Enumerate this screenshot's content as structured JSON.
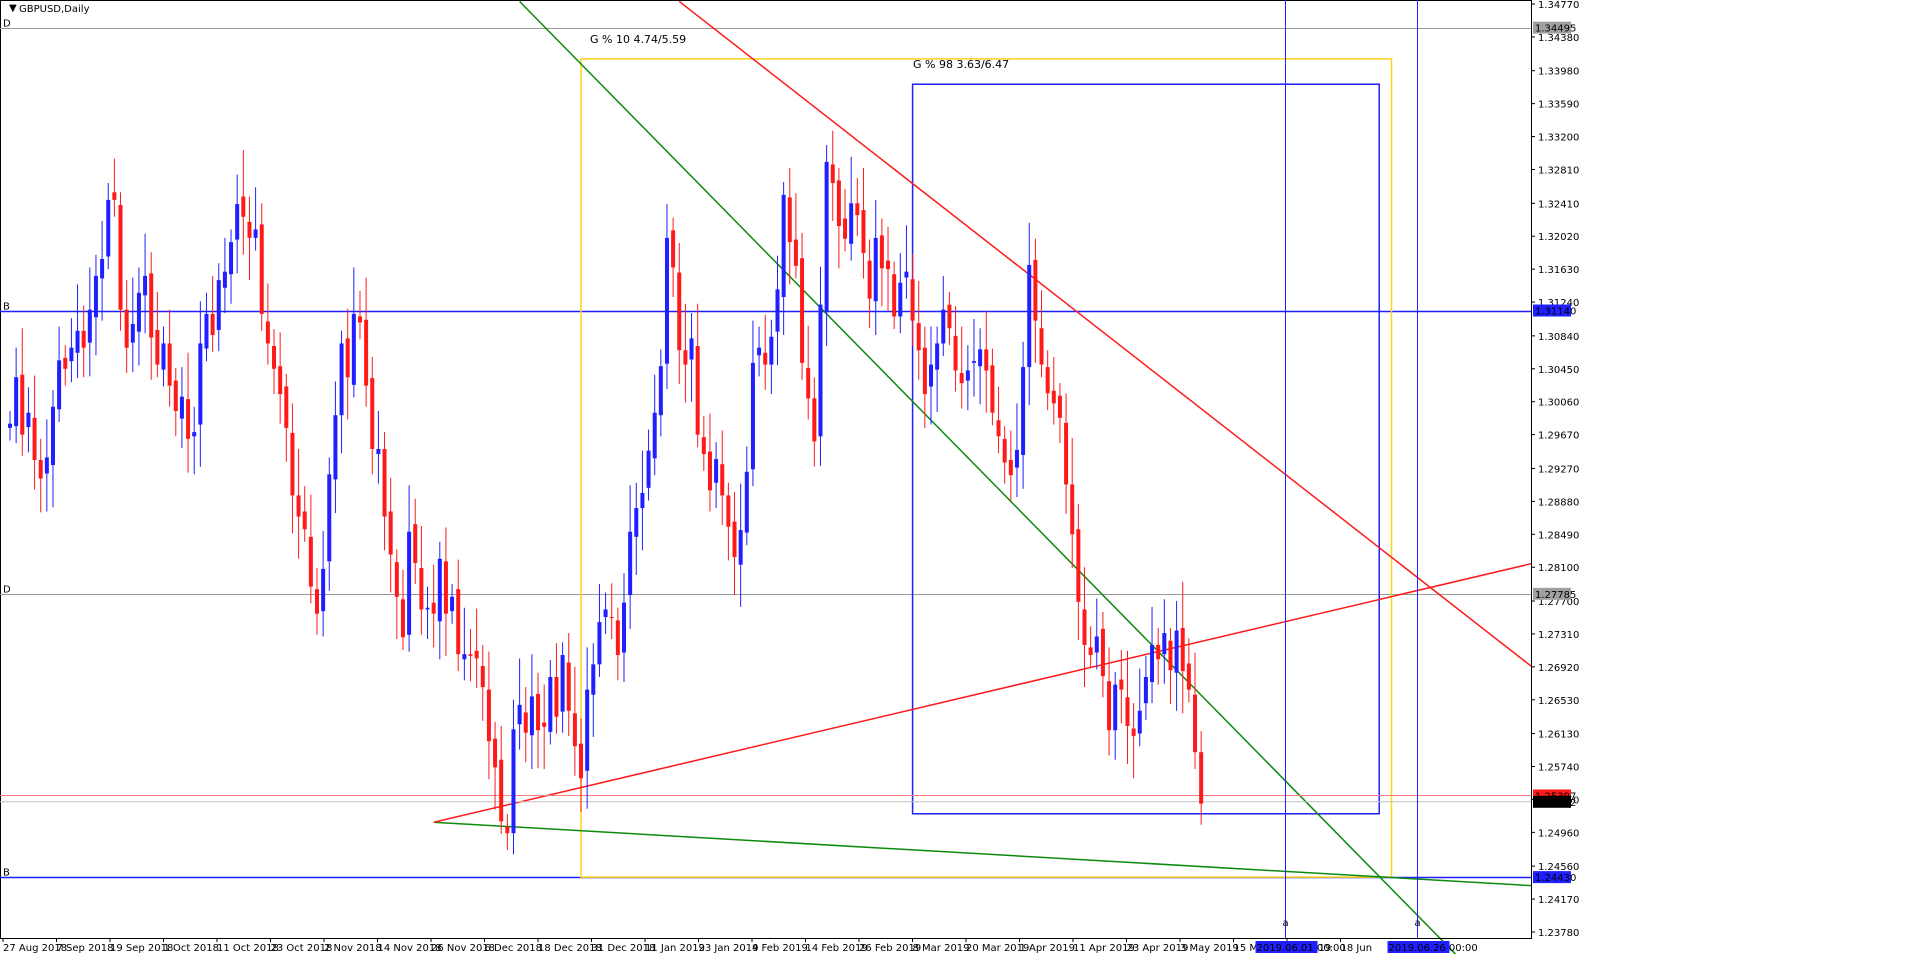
{
  "window": {
    "title": "GBPUSD,Daily"
  },
  "colors": {
    "bull": "#1f1fff",
    "bear": "#ff1a1a",
    "hline_blue": "#1f1fff",
    "hline_gray": "#999999",
    "yellow": "#ffd21a",
    "green": "#0c8a0c",
    "red": "#ff1a1a",
    "blue_box": "#1f1fff"
  },
  "chart_data": {
    "type": "candlestick",
    "symbol": "GBPUSD",
    "timeframe": "Daily",
    "ylim": [
      1.2378,
      1.3477
    ],
    "y_ticks": [
      "1.34770",
      "1.34380",
      "1.33980",
      "1.33590",
      "1.33200",
      "1.32810",
      "1.32410",
      "1.32020",
      "1.31630",
      "1.31240",
      "1.30840",
      "1.30450",
      "1.30060",
      "1.29670",
      "1.29270",
      "1.28880",
      "1.28490",
      "1.28100",
      "1.27700",
      "1.27310",
      "1.26920",
      "1.26530",
      "1.26130",
      "1.25740",
      "1.25350",
      "1.24960",
      "1.24560",
      "1.24170",
      "1.23780"
    ],
    "x_labels": [
      "27 Aug 2018",
      "7 Sep 2018",
      "19 Sep 2018",
      "1 Oct 2018",
      "11 Oct 2018",
      "23 Oct 2018",
      "2 Nov 2018",
      "14 Nov 2018",
      "26 Nov 2018",
      "6 Dec 2018",
      "18 Dec 2018",
      "31 Dec 2018",
      "11 Jan 2019",
      "23 Jan 2019",
      "4 Feb 2019",
      "14 Feb 2019",
      "26 Feb 2019",
      "8 Mar 2019",
      "20 Mar 2019",
      "1 Apr 2019",
      "11 Apr 2019",
      "23 Apr 2019",
      "3 May 2019",
      "15 May 2019",
      "Jun 2019",
      "18 Jun"
    ],
    "closes": [
      1.298,
      1.3035,
      1.2967,
      1.2993,
      1.2937,
      1.2915,
      1.294,
      1.3,
      1.3055,
      1.3045,
      1.307,
      1.309,
      1.307,
      1.3115,
      1.3155,
      1.3175,
      1.3245,
      1.3245,
      1.3115,
      1.307,
      1.3098,
      1.3135,
      1.3155,
      1.3082,
      1.305,
      1.3075,
      1.3025,
      1.2995,
      1.3012,
      1.2962,
      1.297,
      1.3075,
      1.311,
      1.3085,
      1.315,
      1.316,
      1.3195,
      1.324,
      1.3225,
      1.32,
      1.321,
      1.311,
      1.3075,
      1.3045,
      1.3015,
      1.2975,
      1.2895,
      1.287,
      1.2855,
      1.2787,
      1.2755,
      1.2808,
      1.292,
      1.299,
      1.3075,
      1.3035,
      1.311,
      1.31,
      1.3025,
      1.295,
      1.295,
      1.287,
      1.2825,
      1.2775,
      1.2727,
      1.2852,
      1.2815,
      1.276,
      1.2762,
      1.2755,
      1.282,
      1.2755,
      1.2775,
      1.2707,
      1.2707,
      1.2705,
      1.2702,
      1.2668,
      1.2604,
      1.2573,
      1.2509,
      1.2495,
      1.2618,
      1.2647,
      1.2614,
      1.2657,
      1.2617,
      1.2621,
      1.268,
      1.2633,
      1.2706,
      1.264,
      1.2598,
      1.256,
      1.2665,
      1.2695,
      1.2745,
      1.276,
      1.275,
      1.2706,
      1.2768,
      1.2852,
      1.288,
      1.2898,
      1.2948,
      1.2993,
      1.3048,
      1.32,
      1.3165,
      1.3067,
      1.305,
      1.3081,
      1.2967,
      1.2944,
      1.2901,
      1.2938,
      1.2895,
      1.2858,
      1.2822,
      1.2854,
      1.2923,
      1.3052,
      1.307,
      1.305,
      1.3083,
      1.3139,
      1.3251,
      1.3195,
      1.3167,
      1.3052,
      1.301,
      1.2959,
      1.3121,
      1.329,
      1.3265,
      1.3214,
      1.3199,
      1.3241,
      1.3227,
      1.3182,
      1.3128,
      1.32,
      1.3164,
      1.3163,
      1.3107,
      1.3147,
      1.316,
      1.3102,
      1.3067,
      1.3015,
      1.305,
      1.3075,
      1.3115,
      1.3093,
      1.3043,
      1.3028,
      1.3043,
      1.3054,
      1.3068,
      1.3043,
      1.2993,
      1.2965,
      1.2934,
      1.2919,
      1.2949,
      1.3047,
      1.3168,
      1.3102,
      1.305,
      1.3016,
      1.3004,
      1.2987,
      1.2908,
      1.2849,
      1.2769,
      1.2718,
      1.2706,
      1.2728,
      1.2681,
      1.2617,
      1.2671,
      1.2665,
      1.2622,
      1.261,
      1.264,
      1.268,
      1.2718,
      1.2701,
      1.2732,
      1.2688,
      1.2735,
      1.2687,
      1.2665,
      1.2591,
      1.253
    ],
    "current_price": "1.25322",
    "ask_price": "1.25397",
    "hlines": [
      {
        "value": 1.3449,
        "label": "1.34495",
        "style": "gray",
        "tag": "D"
      },
      {
        "value": 1.3114,
        "label": "1.31140",
        "style": "blue",
        "tag": "B"
      },
      {
        "value": 1.27785,
        "label": "1.27785",
        "style": "gray",
        "tag": "D"
      },
      {
        "value": 1.2443,
        "label": "1.24430",
        "style": "blue",
        "tag": "B"
      }
    ],
    "vlines": [
      {
        "label": "2019.06.01 00:00"
      },
      {
        "label": "2019.06.26 00:00"
      }
    ],
    "gann_boxes": [
      {
        "label": "G % 10 4.74/5.59",
        "color": "yellow"
      },
      {
        "label": "G % 98 3.63/6.47",
        "color": "blue"
      }
    ]
  }
}
